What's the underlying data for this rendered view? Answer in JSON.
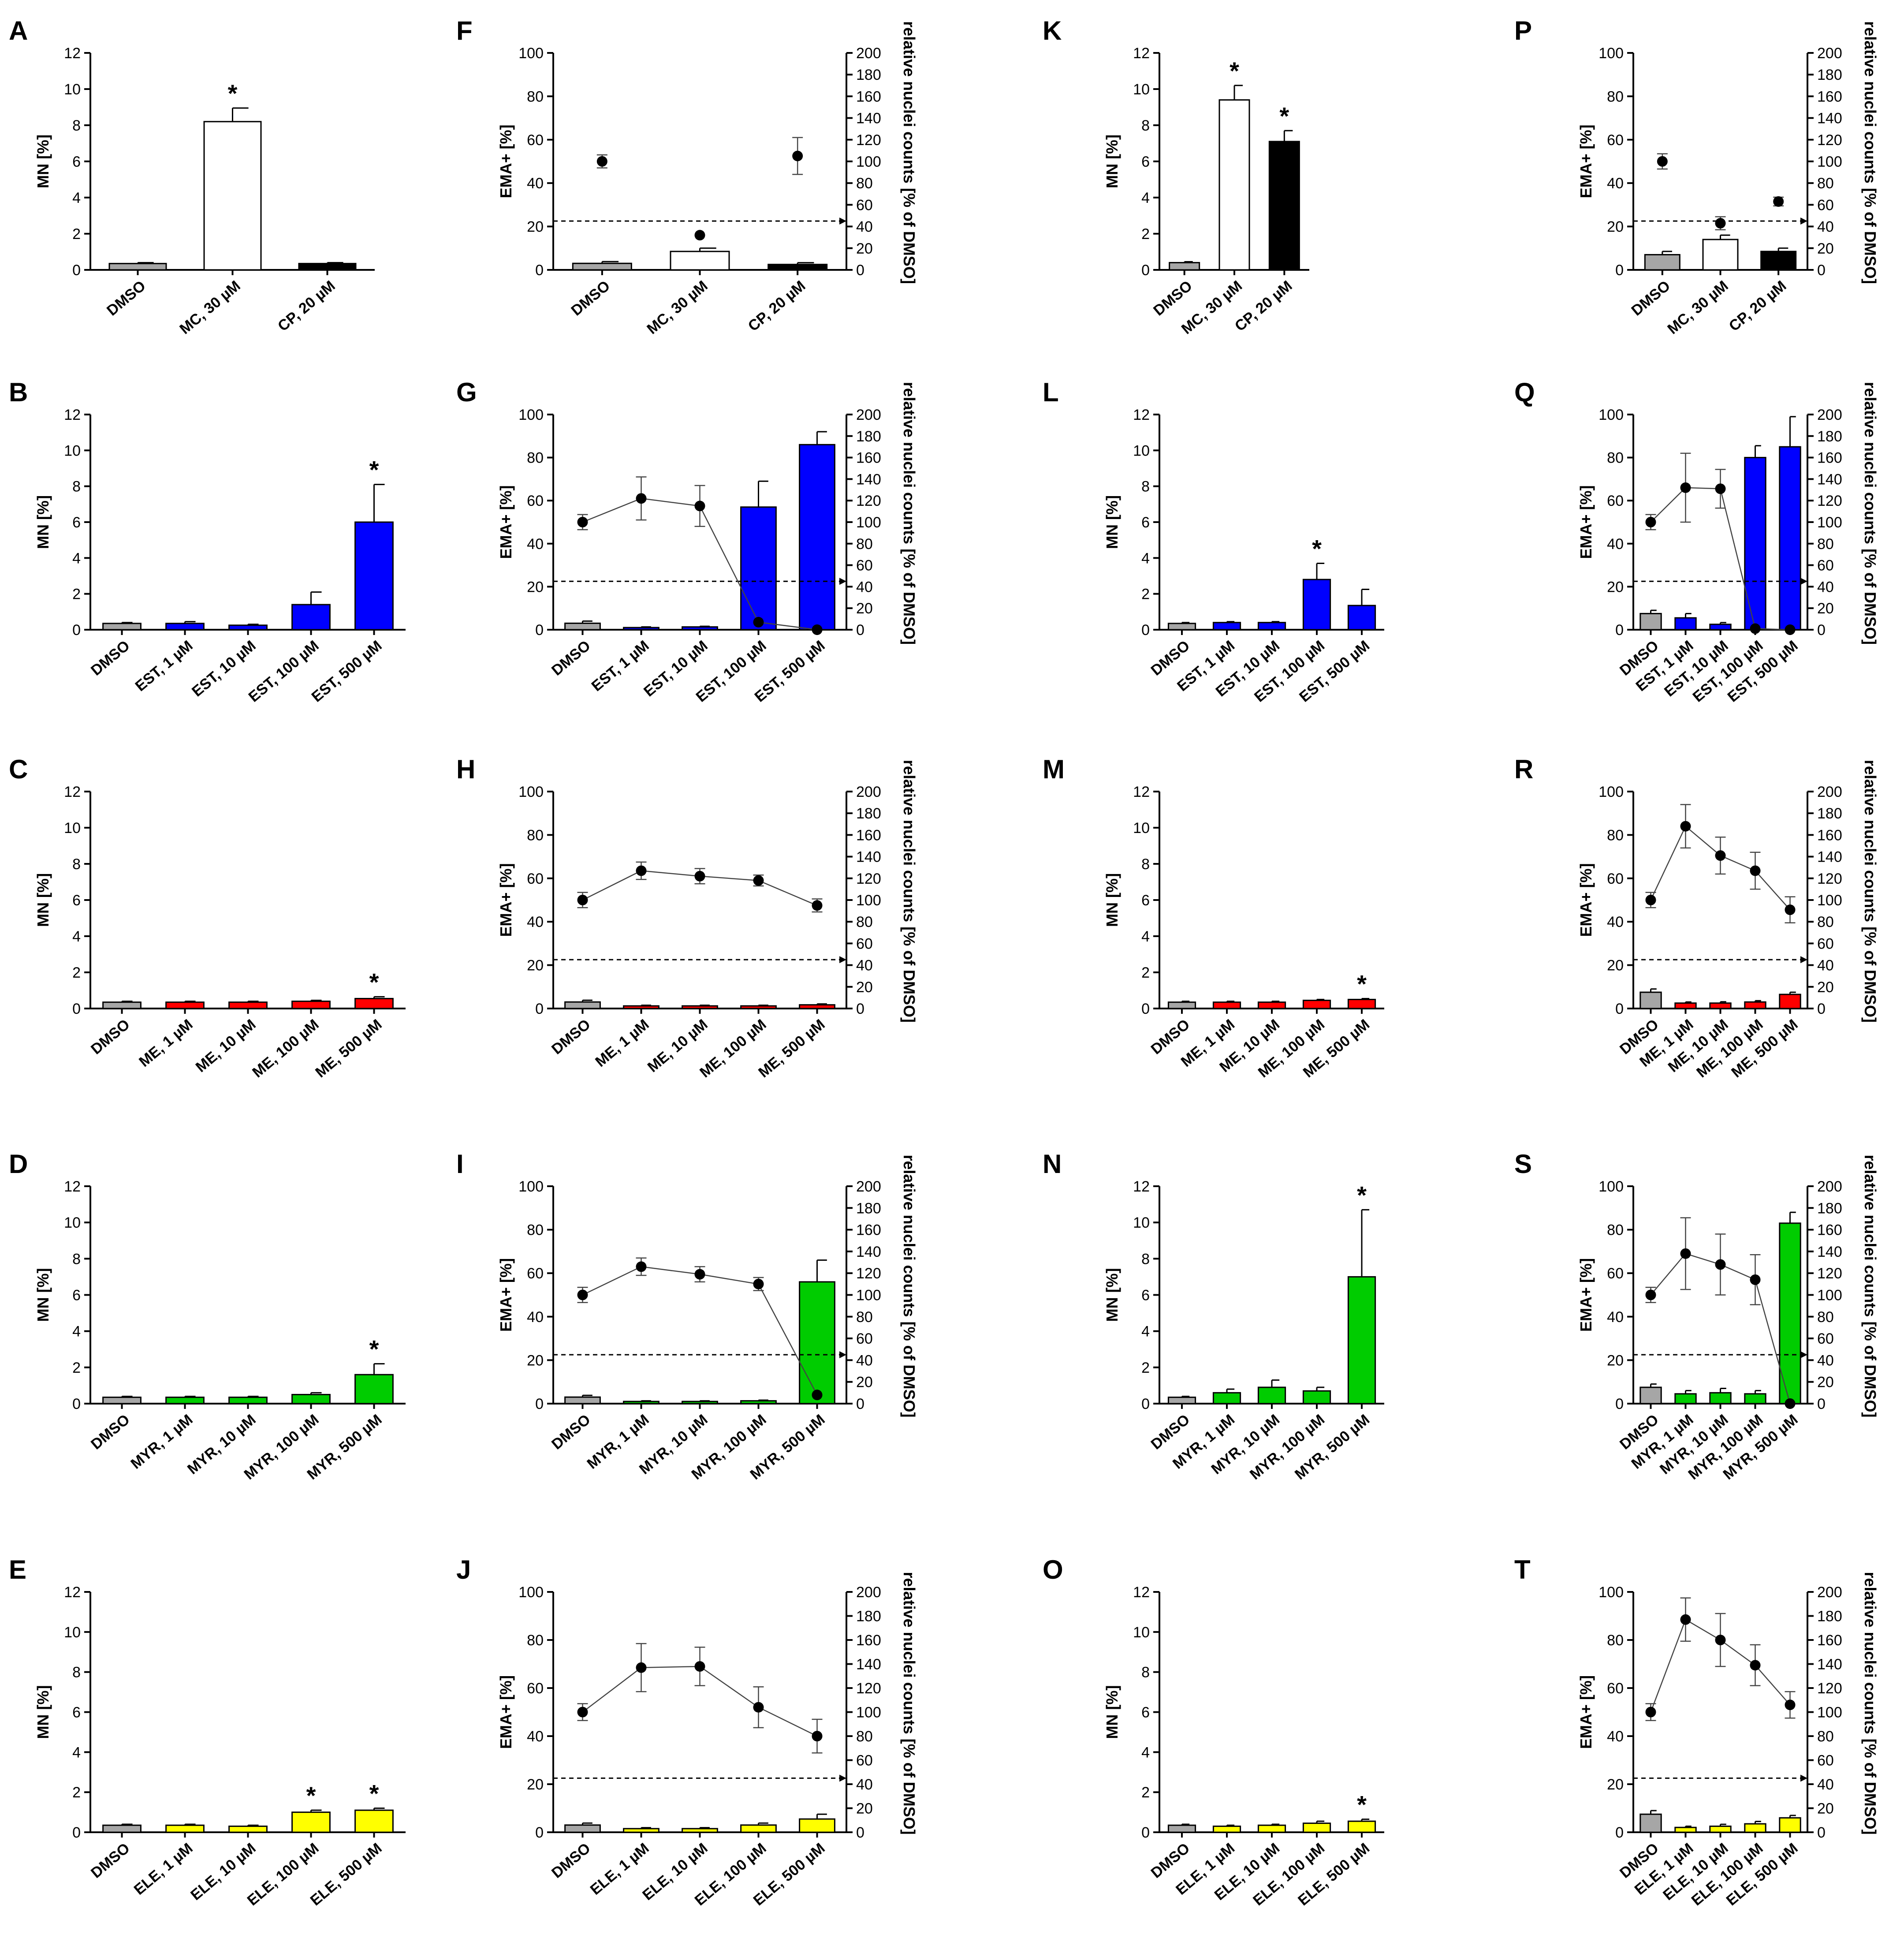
{
  "figure": {
    "background": "#ffffff"
  },
  "colors": {
    "DMSO": "#a6a6a6",
    "MC": "#ffffff",
    "CP": "#000000",
    "EST": "#0000ff",
    "ME": "#ff0000",
    "MYR": "#00cc00",
    "ELE": "#ffff00"
  },
  "chart_data": [
    {
      "label": "A",
      "type": "bar",
      "title": "",
      "xlabel": "",
      "ylabel": "MN [%]",
      "ylim": [
        0,
        12
      ],
      "yticks": [
        0,
        2,
        4,
        6,
        8,
        10,
        12
      ],
      "categories": [
        "DMSO",
        "MC, 30 µM",
        "CP, 20 µM"
      ],
      "colors": [
        "#a6a6a6",
        "#ffffff",
        "#000000"
      ],
      "values": [
        0.35,
        8.2,
        0.35
      ],
      "errors": [
        0.05,
        0.75,
        0.05
      ],
      "significant": [
        false,
        true,
        false
      ]
    },
    {
      "label": "B",
      "type": "bar",
      "ylabel": "MN [%]",
      "ylim": [
        0,
        12
      ],
      "yticks": [
        0,
        2,
        4,
        6,
        8,
        10,
        12
      ],
      "categories": [
        "DMSO",
        "EST, 1 µM",
        "EST, 10 µM",
        "EST, 100 µM",
        "EST, 500 µM"
      ],
      "colors": [
        "#a6a6a6",
        "#0000ff",
        "#0000ff",
        "#0000ff",
        "#0000ff"
      ],
      "values": [
        0.35,
        0.35,
        0.25,
        1.4,
        6.0
      ],
      "errors": [
        0.05,
        0.1,
        0.05,
        0.7,
        2.1
      ],
      "significant": [
        false,
        false,
        false,
        false,
        true
      ]
    },
    {
      "label": "C",
      "type": "bar",
      "ylabel": "MN [%]",
      "ylim": [
        0,
        12
      ],
      "yticks": [
        0,
        2,
        4,
        6,
        8,
        10,
        12
      ],
      "categories": [
        "DMSO",
        "ME, 1 µM",
        "ME, 10 µM",
        "ME, 100 µM",
        "ME, 500 µM"
      ],
      "colors": [
        "#a6a6a6",
        "#ff0000",
        "#ff0000",
        "#ff0000",
        "#ff0000"
      ],
      "values": [
        0.35,
        0.35,
        0.35,
        0.4,
        0.55
      ],
      "errors": [
        0.05,
        0.05,
        0.05,
        0.05,
        0.1
      ],
      "significant": [
        false,
        false,
        false,
        false,
        true
      ]
    },
    {
      "label": "D",
      "type": "bar",
      "ylabel": "MN [%]",
      "ylim": [
        0,
        12
      ],
      "yticks": [
        0,
        2,
        4,
        6,
        8,
        10,
        12
      ],
      "categories": [
        "DMSO",
        "MYR, 1 µM",
        "MYR, 10 µM",
        "MYR, 100 µM",
        "MYR, 500 µM"
      ],
      "colors": [
        "#a6a6a6",
        "#00cc00",
        "#00cc00",
        "#00cc00",
        "#00cc00"
      ],
      "values": [
        0.35,
        0.35,
        0.35,
        0.5,
        1.6
      ],
      "errors": [
        0.05,
        0.05,
        0.05,
        0.1,
        0.6
      ],
      "significant": [
        false,
        false,
        false,
        false,
        true
      ]
    },
    {
      "label": "E",
      "type": "bar",
      "ylabel": "MN [%]",
      "ylim": [
        0,
        12
      ],
      "yticks": [
        0,
        2,
        4,
        6,
        8,
        10,
        12
      ],
      "categories": [
        "DMSO",
        "ELE, 1 µM",
        "ELE, 10 µM",
        "ELE, 100 µM",
        "ELE, 500 µM"
      ],
      "colors": [
        "#a6a6a6",
        "#ffff00",
        "#ffff00",
        "#ffff00",
        "#ffff00"
      ],
      "values": [
        0.35,
        0.35,
        0.3,
        1.0,
        1.1
      ],
      "errors": [
        0.05,
        0.05,
        0.05,
        0.1,
        0.1
      ],
      "significant": [
        false,
        false,
        false,
        true,
        true
      ]
    },
    {
      "label": "F",
      "type": "bar+line",
      "ylabel": "EMA+ [%]",
      "y2label": "relative nuclei counts [% of DMSO]",
      "ylim": [
        0,
        100
      ],
      "yticks": [
        0,
        20,
        40,
        60,
        80,
        100
      ],
      "y2lim": [
        0,
        200
      ],
      "y2ticks": [
        0,
        20,
        40,
        60,
        80,
        100,
        120,
        140,
        160,
        180,
        200
      ],
      "threshold": 45,
      "categories": [
        "DMSO",
        "MC, 30 µM",
        "CP, 20 µM"
      ],
      "colors": [
        "#a6a6a6",
        "#ffffff",
        "#000000"
      ],
      "values": [
        3,
        8.5,
        2.5
      ],
      "errors": [
        0.8,
        1.5,
        0.8
      ],
      "line": [
        100,
        32,
        105
      ],
      "line_errors": [
        6,
        0,
        17
      ],
      "connected": false
    },
    {
      "label": "G",
      "type": "bar+line",
      "ylabel": "EMA+ [%]",
      "y2label": "relative nuclei counts [% of DMSO]",
      "ylim": [
        0,
        100
      ],
      "yticks": [
        0,
        20,
        40,
        60,
        80,
        100
      ],
      "y2lim": [
        0,
        200
      ],
      "y2ticks": [
        0,
        20,
        40,
        60,
        80,
        100,
        120,
        140,
        160,
        180,
        200
      ],
      "threshold": 45,
      "categories": [
        "DMSO",
        "EST, 1 µM",
        "EST, 10 µM",
        "EST, 100 µM",
        "EST, 500 µM"
      ],
      "colors": [
        "#a6a6a6",
        "#0000ff",
        "#0000ff",
        "#0000ff",
        "#0000ff"
      ],
      "values": [
        3,
        1,
        1.3,
        57,
        86
      ],
      "errors": [
        1,
        0.3,
        0.3,
        12,
        6
      ],
      "line": [
        100,
        122,
        115,
        7,
        0
      ],
      "line_errors": [
        7,
        20,
        19,
        0,
        0
      ],
      "connected": true
    },
    {
      "label": "H",
      "type": "bar+line",
      "ylabel": "EMA+ [%]",
      "y2label": "relative nuclei counts [% of DMSO]",
      "ylim": [
        0,
        100
      ],
      "yticks": [
        0,
        20,
        40,
        60,
        80,
        100
      ],
      "y2lim": [
        0,
        200
      ],
      "y2ticks": [
        0,
        20,
        40,
        60,
        80,
        100,
        120,
        140,
        160,
        180,
        200
      ],
      "threshold": 45,
      "categories": [
        "DMSO",
        "ME, 1 µM",
        "ME, 10 µM",
        "ME, 100 µM",
        "ME, 500 µM"
      ],
      "colors": [
        "#a6a6a6",
        "#ff0000",
        "#ff0000",
        "#ff0000",
        "#ff0000"
      ],
      "values": [
        3,
        1.2,
        1.2,
        1.2,
        1.7
      ],
      "errors": [
        0.8,
        0.3,
        0.3,
        0.3,
        0.4
      ],
      "line": [
        100,
        127,
        122,
        118,
        95
      ],
      "line_errors": [
        7,
        8,
        7,
        5,
        6
      ],
      "connected": true
    },
    {
      "label": "I",
      "type": "bar+line",
      "ylabel": "EMA+ [%]",
      "y2label": "relative nuclei counts [% of DMSO]",
      "ylim": [
        0,
        100
      ],
      "yticks": [
        0,
        20,
        40,
        60,
        80,
        100
      ],
      "y2lim": [
        0,
        200
      ],
      "y2ticks": [
        0,
        20,
        40,
        60,
        80,
        100,
        120,
        140,
        160,
        180,
        200
      ],
      "threshold": 45,
      "categories": [
        "DMSO",
        "MYR, 1 µM",
        "MYR, 10 µM",
        "MYR, 100 µM",
        "MYR, 500 µM"
      ],
      "colors": [
        "#a6a6a6",
        "#00cc00",
        "#00cc00",
        "#00cc00",
        "#00cc00"
      ],
      "values": [
        3,
        1,
        1,
        1.3,
        56
      ],
      "errors": [
        0.8,
        0.3,
        0.3,
        0.3,
        10
      ],
      "line": [
        100,
        126,
        119,
        110,
        8
      ],
      "line_errors": [
        7,
        8,
        7,
        6,
        0
      ],
      "connected": true
    },
    {
      "label": "J",
      "type": "bar+line",
      "ylabel": "EMA+ [%]",
      "y2label": "relative nuclei counts [% of DMSO]",
      "ylim": [
        0,
        100
      ],
      "yticks": [
        0,
        20,
        40,
        60,
        80,
        100
      ],
      "y2lim": [
        0,
        200
      ],
      "y2ticks": [
        0,
        20,
        40,
        60,
        80,
        100,
        120,
        140,
        160,
        180,
        200
      ],
      "threshold": 45,
      "categories": [
        "DMSO",
        "ELE, 1 µM",
        "ELE, 10 µM",
        "ELE, 100 µM",
        "ELE, 500 µM"
      ],
      "colors": [
        "#a6a6a6",
        "#ffff00",
        "#ffff00",
        "#ffff00",
        "#ffff00"
      ],
      "values": [
        3,
        1.5,
        1.5,
        3,
        5.5
      ],
      "errors": [
        0.8,
        0.4,
        0.4,
        0.8,
        2
      ],
      "line": [
        100,
        137,
        138,
        104,
        80
      ],
      "line_errors": [
        7,
        20,
        16,
        17,
        14
      ],
      "connected": true
    },
    {
      "label": "K",
      "type": "bar",
      "ylabel": "MN [%]",
      "ylim": [
        0,
        12
      ],
      "yticks": [
        0,
        2,
        4,
        6,
        8,
        10,
        12
      ],
      "categories": [
        "DMSO",
        "MC, 30 µM",
        "CP, 20 µM"
      ],
      "colors": [
        "#a6a6a6",
        "#ffffff",
        "#000000"
      ],
      "values": [
        0.4,
        9.4,
        7.1
      ],
      "errors": [
        0.05,
        0.8,
        0.6
      ],
      "significant": [
        false,
        true,
        true
      ]
    },
    {
      "label": "L",
      "type": "bar",
      "ylabel": "MN [%]",
      "ylim": [
        0,
        12
      ],
      "yticks": [
        0,
        2,
        4,
        6,
        8,
        10,
        12
      ],
      "categories": [
        "DMSO",
        "EST, 1 µM",
        "EST, 10 µM",
        "EST, 100 µM",
        "EST, 500 µM"
      ],
      "colors": [
        "#a6a6a6",
        "#0000ff",
        "#0000ff",
        "#0000ff",
        "#0000ff"
      ],
      "values": [
        0.35,
        0.4,
        0.4,
        2.8,
        1.35
      ],
      "errors": [
        0.05,
        0.05,
        0.05,
        0.9,
        0.9
      ],
      "significant": [
        false,
        false,
        false,
        true,
        false
      ]
    },
    {
      "label": "M",
      "type": "bar",
      "ylabel": "MN [%]",
      "ylim": [
        0,
        12
      ],
      "yticks": [
        0,
        2,
        4,
        6,
        8,
        10,
        12
      ],
      "categories": [
        "DMSO",
        "ME, 1 µM",
        "ME, 10 µM",
        "ME, 100 µM",
        "ME, 500 µM"
      ],
      "colors": [
        "#a6a6a6",
        "#ff0000",
        "#ff0000",
        "#ff0000",
        "#ff0000"
      ],
      "values": [
        0.35,
        0.35,
        0.35,
        0.45,
        0.5
      ],
      "errors": [
        0.05,
        0.05,
        0.05,
        0.05,
        0.05
      ],
      "significant": [
        false,
        false,
        false,
        false,
        true
      ]
    },
    {
      "label": "N",
      "type": "bar",
      "ylabel": "MN [%]",
      "ylim": [
        0,
        12
      ],
      "yticks": [
        0,
        2,
        4,
        6,
        8,
        10,
        12
      ],
      "categories": [
        "DMSO",
        "MYR, 1 µM",
        "MYR, 10 µM",
        "MYR, 100 µM",
        "MYR, 500 µM"
      ],
      "colors": [
        "#a6a6a6",
        "#00cc00",
        "#00cc00",
        "#00cc00",
        "#00cc00"
      ],
      "values": [
        0.35,
        0.6,
        0.9,
        0.7,
        7.0
      ],
      "errors": [
        0.05,
        0.2,
        0.4,
        0.2,
        3.7
      ],
      "significant": [
        false,
        false,
        false,
        false,
        true
      ]
    },
    {
      "label": "O",
      "type": "bar",
      "ylabel": "MN [%]",
      "ylim": [
        0,
        12
      ],
      "yticks": [
        0,
        2,
        4,
        6,
        8,
        10,
        12
      ],
      "categories": [
        "DMSO",
        "ELE, 1 µM",
        "ELE, 10 µM",
        "ELE, 100 µM",
        "ELE, 500 µM"
      ],
      "colors": [
        "#a6a6a6",
        "#ffff00",
        "#ffff00",
        "#ffff00",
        "#ffff00"
      ],
      "values": [
        0.35,
        0.3,
        0.35,
        0.45,
        0.55
      ],
      "errors": [
        0.05,
        0.05,
        0.05,
        0.1,
        0.1
      ],
      "significant": [
        false,
        false,
        false,
        false,
        true
      ]
    },
    {
      "label": "P",
      "type": "bar+line",
      "ylabel": "EMA+ [%]",
      "y2label": "relative nuclei counts [% of DMSO]",
      "ylim": [
        0,
        100
      ],
      "yticks": [
        0,
        20,
        40,
        60,
        80,
        100
      ],
      "y2lim": [
        0,
        200
      ],
      "y2ticks": [
        0,
        20,
        40,
        60,
        80,
        100,
        120,
        140,
        160,
        180,
        200
      ],
      "threshold": 45,
      "categories": [
        "DMSO",
        "MC, 30 µM",
        "CP, 20 µM"
      ],
      "colors": [
        "#a6a6a6",
        "#ffffff",
        "#000000"
      ],
      "values": [
        7,
        14,
        8.5
      ],
      "errors": [
        1.5,
        2,
        1.5
      ],
      "line": [
        100,
        43,
        63
      ],
      "line_errors": [
        7,
        6,
        4
      ],
      "connected": false
    },
    {
      "label": "Q",
      "type": "bar+line",
      "ylabel": "EMA+ [%]",
      "y2label": "relative nuclei counts [% of DMSO]",
      "ylim": [
        0,
        100
      ],
      "yticks": [
        0,
        20,
        40,
        60,
        80,
        100
      ],
      "y2lim": [
        0,
        200
      ],
      "y2ticks": [
        0,
        20,
        40,
        60,
        80,
        100,
        120,
        140,
        160,
        180,
        200
      ],
      "threshold": 45,
      "categories": [
        "DMSO",
        "EST, 1 µM",
        "EST, 10 µM",
        "EST, 100 µM",
        "EST, 500 µM"
      ],
      "colors": [
        "#a6a6a6",
        "#0000ff",
        "#0000ff",
        "#0000ff",
        "#0000ff"
      ],
      "values": [
        7.5,
        5.5,
        2.5,
        80,
        85
      ],
      "errors": [
        1.5,
        2,
        0.8,
        5.5,
        14
      ],
      "line": [
        100,
        132,
        131,
        1,
        0
      ],
      "line_errors": [
        7,
        32,
        18,
        0,
        0
      ],
      "connected": true
    },
    {
      "label": "R",
      "type": "bar+line",
      "ylabel": "EMA+ [%]",
      "y2label": "relative nuclei counts [% of DMSO]",
      "ylim": [
        0,
        100
      ],
      "yticks": [
        0,
        20,
        40,
        60,
        80,
        100
      ],
      "y2lim": [
        0,
        200
      ],
      "y2ticks": [
        0,
        20,
        40,
        60,
        80,
        100,
        120,
        140,
        160,
        180,
        200
      ],
      "threshold": 45,
      "categories": [
        "DMSO",
        "ME, 1 µM",
        "ME, 10 µM",
        "ME, 100 µM",
        "ME, 500 µM"
      ],
      "colors": [
        "#a6a6a6",
        "#ff0000",
        "#ff0000",
        "#ff0000",
        "#ff0000"
      ],
      "values": [
        7.5,
        2.5,
        2.5,
        3,
        6.5
      ],
      "errors": [
        1.5,
        0.5,
        0.6,
        0.6,
        1
      ],
      "line": [
        100,
        168,
        141,
        127,
        91
      ],
      "line_errors": [
        7,
        20,
        17,
        17,
        12
      ],
      "connected": true
    },
    {
      "label": "S",
      "type": "bar+line",
      "ylabel": "EMA+ [%]",
      "y2label": "relative nuclei counts [% of DMSO]",
      "ylim": [
        0,
        100
      ],
      "yticks": [
        0,
        20,
        40,
        60,
        80,
        100
      ],
      "y2lim": [
        0,
        200
      ],
      "y2ticks": [
        0,
        20,
        40,
        60,
        80,
        100,
        120,
        140,
        160,
        180,
        200
      ],
      "threshold": 45,
      "categories": [
        "DMSO",
        "MYR, 1 µM",
        "MYR, 10 µM",
        "MYR, 100 µM",
        "MYR, 500 µM"
      ],
      "colors": [
        "#a6a6a6",
        "#00cc00",
        "#00cc00",
        "#00cc00",
        "#00cc00"
      ],
      "values": [
        7.5,
        4.5,
        5,
        4.5,
        83
      ],
      "errors": [
        1.5,
        1.5,
        2,
        1.5,
        5
      ],
      "line": [
        100,
        138,
        128,
        114,
        0
      ],
      "line_errors": [
        7,
        33,
        28,
        23,
        0
      ],
      "connected": true
    },
    {
      "label": "T",
      "type": "bar+line",
      "ylabel": "EMA+ [%]",
      "y2label": "relative nuclei counts [% of DMSO]",
      "ylim": [
        0,
        100
      ],
      "yticks": [
        0,
        20,
        40,
        60,
        80,
        100
      ],
      "y2lim": [
        0,
        200
      ],
      "y2ticks": [
        0,
        20,
        40,
        60,
        80,
        100,
        120,
        140,
        160,
        180,
        200
      ],
      "threshold": 45,
      "categories": [
        "DMSO",
        "ELE, 1 µM",
        "ELE, 10 µM",
        "ELE, 100 µM",
        "ELE, 500 µM"
      ],
      "colors": [
        "#a6a6a6",
        "#ffff00",
        "#ffff00",
        "#ffff00",
        "#ffff00"
      ],
      "values": [
        7.5,
        2,
        2.5,
        3.5,
        6
      ],
      "errors": [
        1.5,
        0.5,
        0.8,
        1,
        1
      ],
      "line": [
        100,
        177,
        160,
        139,
        106
      ],
      "line_errors": [
        7,
        18,
        22,
        17,
        11
      ],
      "connected": true
    }
  ]
}
